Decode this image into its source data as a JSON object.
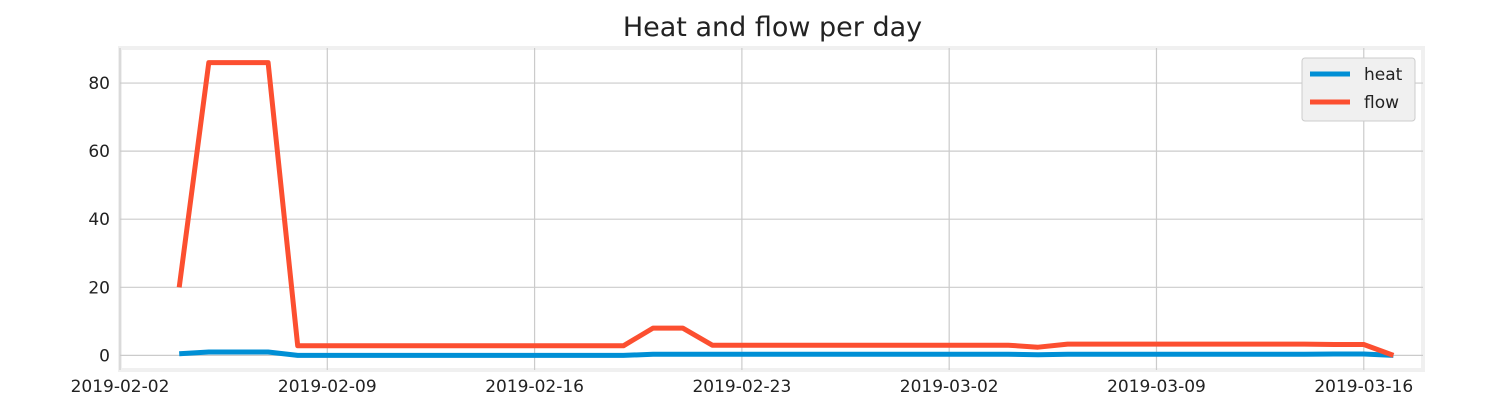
{
  "chart_data": {
    "type": "line",
    "title": "Heat and flow per day",
    "xlabel": "",
    "ylabel": "",
    "x": [
      "2019-02-04",
      "2019-02-05",
      "2019-02-06",
      "2019-02-07",
      "2019-02-08",
      "2019-02-09",
      "2019-02-10",
      "2019-02-11",
      "2019-02-12",
      "2019-02-13",
      "2019-02-14",
      "2019-02-15",
      "2019-02-16",
      "2019-02-17",
      "2019-02-18",
      "2019-02-19",
      "2019-02-20",
      "2019-02-21",
      "2019-02-22",
      "2019-02-23",
      "2019-02-24",
      "2019-02-25",
      "2019-02-26",
      "2019-02-27",
      "2019-02-28",
      "2019-03-01",
      "2019-03-02",
      "2019-03-03",
      "2019-03-04",
      "2019-03-05",
      "2019-03-06",
      "2019-03-07",
      "2019-03-08",
      "2019-03-09",
      "2019-03-10",
      "2019-03-11",
      "2019-03-12",
      "2019-03-13",
      "2019-03-14",
      "2019-03-15",
      "2019-03-16",
      "2019-03-17"
    ],
    "series": [
      {
        "name": "heat",
        "color": "#008fd5",
        "values": [
          0.5,
          1,
          1,
          1,
          0,
          0,
          0,
          0,
          0,
          0,
          0,
          0,
          0,
          0,
          0,
          0,
          0.3,
          0.3,
          0.3,
          0.3,
          0.3,
          0.3,
          0.3,
          0.3,
          0.3,
          0.3,
          0.3,
          0.3,
          0.3,
          0.2,
          0.3,
          0.3,
          0.3,
          0.3,
          0.3,
          0.3,
          0.3,
          0.3,
          0.3,
          0.4,
          0.4,
          0
        ]
      },
      {
        "name": "flow",
        "color": "#fc4f30",
        "values": [
          20,
          86,
          86,
          86,
          2.8,
          2.8,
          2.8,
          2.8,
          2.8,
          2.8,
          2.8,
          2.8,
          2.8,
          2.8,
          2.8,
          2.8,
          8,
          8,
          3,
          3,
          3,
          3,
          3,
          3,
          3,
          3,
          3,
          3,
          3,
          2.4,
          3.3,
          3.3,
          3.3,
          3.3,
          3.3,
          3.3,
          3.3,
          3.3,
          3.3,
          3.2,
          3.2,
          0
        ]
      }
    ],
    "xticks": [
      "2019-02-02",
      "2019-02-09",
      "2019-02-16",
      "2019-02-23",
      "2019-03-02",
      "2019-03-09",
      "2019-03-16"
    ],
    "yticks": [
      0,
      20,
      40,
      60,
      80
    ],
    "xlim": [
      "2019-02-02",
      "2019-03-18"
    ],
    "ylim": [
      -4.3,
      90.3
    ],
    "grid": true,
    "legend_position": "top-right"
  }
}
